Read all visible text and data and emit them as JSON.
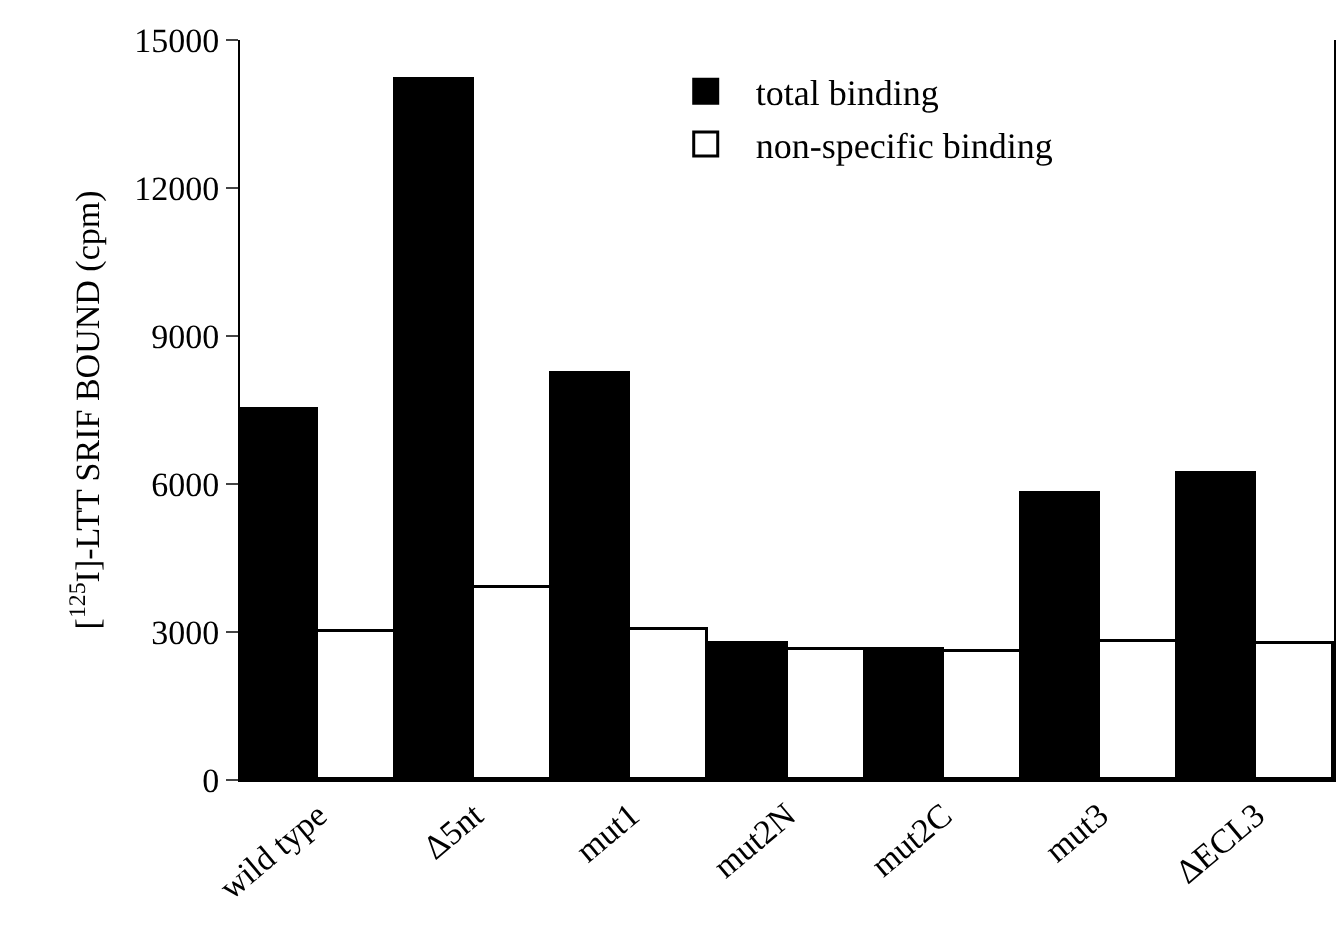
{
  "chart_data": {
    "type": "bar",
    "ylabel": "[$^{125}$I]-LTT SRIF BOUND (cpm)",
    "categories": [
      "wild type",
      "Δ5nt",
      "mut1",
      "mut2N",
      "mut2C",
      "mut3",
      "ΔECL3"
    ],
    "series": [
      {
        "name": "total binding",
        "color": "#000000",
        "values": [
          7500,
          14200,
          8250,
          2750,
          2650,
          5800,
          6200
        ]
      },
      {
        "name": "non-specific binding",
        "color": "#ffffff",
        "values": [
          3000,
          3900,
          3050,
          2650,
          2600,
          2800,
          2750
        ]
      }
    ],
    "ylim": [
      0,
      15000
    ],
    "yticks": [
      0,
      3000,
      6000,
      9000,
      12000,
      15000
    ],
    "grid": false,
    "legend": "top right"
  }
}
